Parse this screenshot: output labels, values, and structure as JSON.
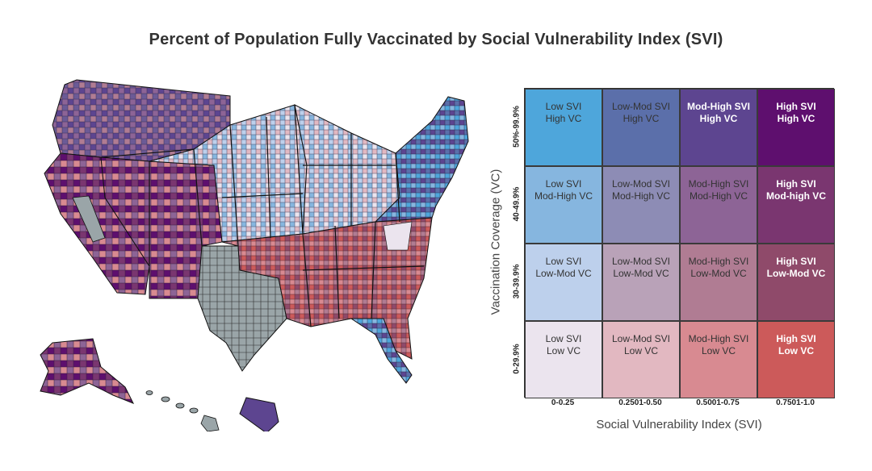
{
  "title": "Percent of Population Fully Vaccinated by Social Vulnerability Index (SVI)",
  "legend": {
    "y_title": "Vaccination Coverage (VC)",
    "x_title": "Social Vulnerability Index (SVI)",
    "y_labels": [
      "50%-99.9%",
      "40-49.9%",
      "30-39.9%",
      "0-29.9%"
    ],
    "x_labels": [
      "0-0.25",
      "0.2501-0.50",
      "0.5001-0.75",
      "0.7501-1.0"
    ],
    "rows": [
      [
        {
          "l1": "Low SVI",
          "l2": "High VC",
          "color": "#4ea6db"
        },
        {
          "l1": "Low-Mod SVI",
          "l2": "High VC",
          "color": "#5b6faa"
        },
        {
          "l1": "Mod-High SVI",
          "l2": "High VC",
          "color": "#5d4590"
        },
        {
          "l1": "High SVI",
          "l2": "High VC",
          "color": "#5e0f6e"
        }
      ],
      [
        {
          "l1": "Low SVI",
          "l2": "Mod-High VC",
          "color": "#86b6df"
        },
        {
          "l1": "Low-Mod SVI",
          "l2": "Mod-High VC",
          "color": "#8d8cb5"
        },
        {
          "l1": "Mod-High SVI",
          "l2": "Mod-High VC",
          "color": "#8d6496"
        },
        {
          "l1": "High SVI",
          "l2": "Mod-high VC",
          "color": "#7a3670"
        }
      ],
      [
        {
          "l1": "Low SVI",
          "l2": "Low-Mod VC",
          "color": "#bdd0ec"
        },
        {
          "l1": "Low-Mod SVI",
          "l2": "Low-Mod VC",
          "color": "#b9a2b8"
        },
        {
          "l1": "Mod-High SVI",
          "l2": "Low-Mod VC",
          "color": "#b07c93"
        },
        {
          "l1": "High SVI",
          "l2": "Low-Mod VC",
          "color": "#8f4a6a"
        }
      ],
      [
        {
          "l1": "Low SVI",
          "l2": "Low VC",
          "color": "#ebe4ee"
        },
        {
          "l1": "Low-Mod SVI",
          "l2": "Low VC",
          "color": "#e2b8c1"
        },
        {
          "l1": "Mod-High SVI",
          "l2": "Low VC",
          "color": "#d88a91"
        },
        {
          "l1": "High SVI",
          "l2": "Low VC",
          "color": "#cc5a5a"
        }
      ]
    ],
    "dark_text_columns": [
      3
    ],
    "dark_text_cells": [
      [
        0,
        2
      ]
    ]
  },
  "map_colors": {
    "no_data": "#9aa5a8",
    "border": "#111111"
  }
}
